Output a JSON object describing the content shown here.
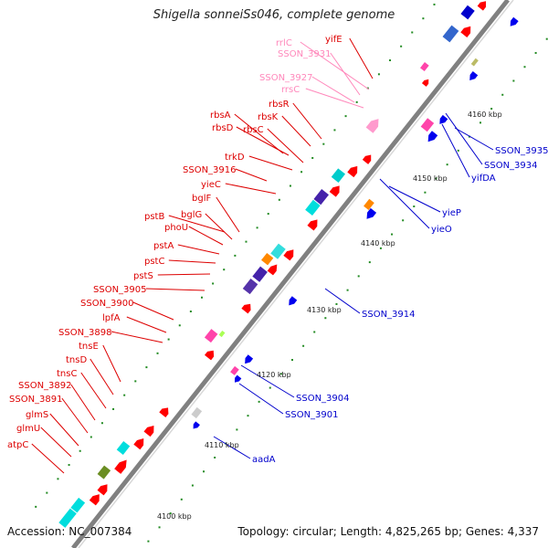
{
  "title_prefix": "Shigella sonnei",
  "title_rest": " Ss046, complete genome",
  "accession": "Accession: NC_007384",
  "summary": "Topology: circular; Length: 4,825,265 bp; Genes: 4,337",
  "colors": {
    "backbone": "#808080",
    "forward_label": "#dd0000",
    "reverse_label": "#0000cc",
    "rna_label": "#ff88bb",
    "cds": "#ff0000",
    "cds_reverse": "#0000ee",
    "rrna": "#ff9acd",
    "tick": "#228b22"
  },
  "kbp_labels": [
    "4100 kbp",
    "4110 kbp",
    "4120 kbp",
    "4130 kbp",
    "4140 kbp",
    "4150 kbp",
    "4160 kbp"
  ],
  "left_labels": [
    {
      "text": "atpC",
      "color": "forward"
    },
    {
      "text": "glmU",
      "color": "forward"
    },
    {
      "text": "glmS",
      "color": "forward"
    },
    {
      "text": "SSON_3891",
      "color": "forward"
    },
    {
      "text": "SSON_3892",
      "color": "forward"
    },
    {
      "text": "tnsC",
      "color": "forward"
    },
    {
      "text": "tnsD",
      "color": "forward"
    },
    {
      "text": "tnsE",
      "color": "forward"
    },
    {
      "text": "SSON_3898",
      "color": "forward"
    },
    {
      "text": "lpfA",
      "color": "forward"
    },
    {
      "text": "SSON_3900",
      "color": "forward"
    },
    {
      "text": "SSON_3905",
      "color": "forward"
    },
    {
      "text": "pstS",
      "color": "forward"
    },
    {
      "text": "pstC",
      "color": "forward"
    },
    {
      "text": "pstA",
      "color": "forward"
    },
    {
      "text": "phoU",
      "color": "forward"
    },
    {
      "text": "bglG",
      "color": "forward"
    },
    {
      "text": "pstB",
      "color": "forward"
    },
    {
      "text": "bglF",
      "color": "forward"
    },
    {
      "text": "yieC",
      "color": "forward"
    },
    {
      "text": "SSON_3916",
      "color": "forward"
    },
    {
      "text": "trkD",
      "color": "forward"
    },
    {
      "text": "rbsC",
      "color": "forward"
    },
    {
      "text": "rbsD",
      "color": "forward"
    },
    {
      "text": "rbsK",
      "color": "forward"
    },
    {
      "text": "rbsA",
      "color": "forward"
    },
    {
      "text": "rbsR",
      "color": "forward"
    },
    {
      "text": "rrsC",
      "color": "rna"
    },
    {
      "text": "SSON_3927",
      "color": "rna"
    },
    {
      "text": "SSON_3931",
      "color": "rna"
    },
    {
      "text": "rrlC",
      "color": "rna"
    },
    {
      "text": "yifE",
      "color": "forward"
    }
  ],
  "right_labels": [
    {
      "text": "aadA",
      "color": "reverse"
    },
    {
      "text": "SSON_3901",
      "color": "reverse"
    },
    {
      "text": "SSON_3904",
      "color": "reverse"
    },
    {
      "text": "SSON_3914",
      "color": "reverse"
    },
    {
      "text": "yieO",
      "color": "reverse"
    },
    {
      "text": "yieP",
      "color": "reverse"
    },
    {
      "text": "yifDA",
      "color": "reverse"
    },
    {
      "text": "SSON_3934",
      "color": "reverse"
    },
    {
      "text": "SSON_3935",
      "color": "reverse"
    }
  ]
}
